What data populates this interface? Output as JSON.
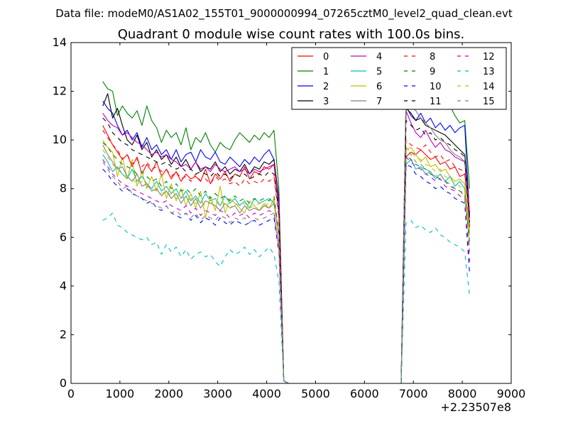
{
  "figure": {
    "suptitle": "Data file: modeM0/AS1A02_155T01_9000000994_07265cztM0_level2_quad_clean.evt"
  },
  "chart_data": {
    "type": "line",
    "title": "Quadrant 0 module wise count rates with 100.0s bins.",
    "xlabel": "",
    "ylabel": "",
    "x_offset_label": "+2.23507e8",
    "xlim": [
      0,
      9000
    ],
    "ylim": [
      0,
      14
    ],
    "xticks": [
      0,
      1000,
      2000,
      3000,
      4000,
      5000,
      6000,
      7000,
      8000,
      9000
    ],
    "yticks": [
      0,
      2,
      4,
      6,
      8,
      10,
      12,
      14
    ],
    "grid": false,
    "legend": {
      "placement": "top-right",
      "columns": 4
    },
    "x": [
      650,
      750,
      850,
      950,
      1050,
      1150,
      1250,
      1350,
      1450,
      1550,
      1650,
      1750,
      1850,
      1950,
      2050,
      2150,
      2250,
      2350,
      2450,
      2550,
      2650,
      2750,
      2850,
      2950,
      3050,
      3150,
      3250,
      3350,
      3450,
      3550,
      3650,
      3750,
      3850,
      3950,
      4050,
      4150,
      4250,
      4350,
      4450,
      4550,
      6650,
      6750,
      6850,
      6950,
      7050,
      7150,
      7250,
      7350,
      7450,
      7550,
      7650,
      7750,
      7850,
      7950,
      8050,
      8150
    ],
    "series": [
      {
        "name": "0",
        "color": "#ff0000",
        "dash": false,
        "values": [
          10.6,
          10.2,
          9.8,
          9.5,
          9.2,
          9.4,
          8.9,
          9.3,
          8.6,
          9.0,
          8.7,
          9.1,
          8.5,
          8.8,
          8.4,
          8.7,
          8.3,
          8.6,
          8.4,
          8.5,
          8.3,
          8.8,
          8.2,
          8.6,
          8.4,
          8.7,
          8.3,
          8.6,
          8.5,
          8.9,
          8.4,
          8.7,
          8.6,
          8.9,
          8.8,
          9.0,
          7.2,
          0.1,
          0,
          0,
          0,
          0,
          9.3,
          9.5,
          9.4,
          9.6,
          9.4,
          9.2,
          9.3,
          9.0,
          9.1,
          8.8,
          8.9,
          8.5,
          8.6,
          6.9
        ]
      },
      {
        "name": "1",
        "color": "#008000",
        "dash": false,
        "values": [
          12.4,
          12.1,
          12.0,
          11.0,
          11.4,
          11.1,
          10.9,
          11.2,
          10.6,
          11.4,
          10.8,
          10.5,
          9.9,
          10.4,
          10.1,
          10.3,
          9.8,
          10.5,
          9.6,
          10.1,
          9.9,
          10.3,
          9.8,
          9.5,
          9.9,
          9.7,
          9.6,
          10.0,
          10.3,
          10.1,
          9.9,
          10.2,
          10.0,
          10.3,
          10.1,
          10.4,
          8.0,
          0.1,
          0,
          0,
          0,
          0,
          11.9,
          12.5,
          12.2,
          11.9,
          12.0,
          11.8,
          11.6,
          11.7,
          11.5,
          11.4,
          11.0,
          10.7,
          10.8,
          8.0
        ]
      },
      {
        "name": "2",
        "color": "#0000ff",
        "dash": false,
        "values": [
          11.6,
          11.3,
          11.1,
          10.6,
          10.2,
          10.4,
          10.0,
          10.3,
          9.7,
          10.1,
          9.6,
          9.8,
          9.4,
          9.6,
          9.2,
          9.6,
          9.1,
          9.4,
          9.5,
          9.1,
          9.6,
          9.3,
          9.2,
          9.5,
          9.1,
          9.0,
          9.3,
          9.1,
          8.9,
          9.2,
          9.0,
          9.3,
          9.1,
          9.4,
          9.6,
          9.2,
          7.3,
          0.1,
          0,
          0,
          0,
          0,
          11.4,
          11.0,
          10.8,
          11.1,
          10.7,
          10.9,
          10.5,
          10.7,
          10.4,
          10.6,
          10.3,
          10.5,
          10.6,
          6.8
        ]
      },
      {
        "name": "3",
        "color": "#000000",
        "dash": false,
        "values": [
          11.4,
          11.9,
          10.9,
          11.3,
          10.6,
          10.0,
          9.8,
          10.2,
          9.6,
          9.9,
          9.3,
          9.6,
          9.2,
          9.4,
          9.0,
          9.3,
          8.9,
          9.2,
          8.8,
          9.1,
          8.7,
          8.9,
          8.8,
          9.1,
          8.7,
          8.9,
          8.6,
          8.8,
          8.7,
          9.0,
          8.6,
          8.9,
          8.8,
          9.1,
          9.0,
          9.2,
          7.6,
          0.1,
          0,
          0,
          0,
          0,
          11.3,
          11.1,
          10.8,
          10.9,
          10.6,
          10.5,
          10.4,
          10.3,
          10.2,
          10.0,
          9.8,
          9.6,
          9.4,
          7.0
        ]
      },
      {
        "name": "4",
        "color": "#bf00bf",
        "dash": false,
        "values": [
          11.1,
          10.8,
          10.6,
          10.5,
          10.2,
          10.3,
          10.1,
          9.9,
          9.8,
          9.6,
          9.4,
          9.5,
          9.3,
          9.4,
          9.2,
          9.1,
          8.9,
          9.0,
          8.8,
          9.1,
          8.8,
          8.9,
          8.7,
          9.0,
          8.8,
          8.7,
          8.8,
          8.9,
          8.7,
          8.8,
          8.6,
          8.8,
          8.7,
          8.8,
          8.9,
          9.0,
          7.5,
          0.1,
          0,
          0,
          0,
          0,
          11.2,
          10.7,
          10.3,
          10.1,
          10.4,
          10.0,
          9.7,
          9.9,
          9.6,
          9.5,
          9.3,
          9.2,
          9.1,
          7.0
        ]
      },
      {
        "name": "5",
        "color": "#00bfbf",
        "dash": false,
        "values": [
          9.4,
          9.1,
          8.7,
          8.9,
          8.6,
          8.4,
          8.8,
          8.3,
          8.5,
          8.2,
          8.0,
          8.3,
          7.9,
          8.1,
          7.8,
          8.0,
          7.6,
          7.9,
          7.5,
          7.7,
          7.4,
          7.8,
          7.5,
          7.6,
          7.3,
          7.7,
          7.4,
          7.6,
          7.3,
          7.5,
          7.2,
          7.6,
          7.4,
          7.5,
          7.6,
          7.4,
          6.1,
          0.1,
          0,
          0,
          0,
          0,
          9.0,
          9.2,
          8.8,
          8.9,
          8.6,
          8.7,
          8.4,
          8.6,
          8.3,
          8.5,
          8.1,
          8.3,
          8.0,
          6.2
        ]
      },
      {
        "name": "6",
        "color": "#bfbf00",
        "dash": false,
        "values": [
          10.0,
          9.7,
          9.5,
          8.5,
          9.3,
          8.4,
          9.2,
          8.1,
          8.7,
          8.0,
          8.5,
          7.9,
          8.6,
          7.6,
          8.2,
          7.5,
          8.0,
          7.3,
          7.8,
          7.2,
          7.9,
          6.8,
          7.7,
          7.1,
          8.1,
          7.0,
          7.6,
          7.4,
          7.2,
          7.0,
          7.5,
          7.3,
          7.1,
          7.4,
          7.2,
          7.6,
          6.1,
          0.1,
          0,
          0,
          0,
          0,
          9.6,
          9.7,
          9.4,
          9.1,
          9.3,
          8.9,
          9.0,
          8.7,
          8.8,
          8.5,
          8.3,
          8.4,
          8.2,
          6.1
        ]
      },
      {
        "name": "7",
        "color": "#808080",
        "dash": false,
        "values": [
          9.8,
          9.4,
          9.1,
          8.8,
          8.9,
          8.5,
          8.3,
          8.6,
          8.1,
          8.2,
          7.9,
          8.0,
          7.7,
          7.9,
          7.6,
          7.8,
          7.4,
          7.7,
          7.3,
          7.6,
          7.2,
          7.5,
          7.4,
          7.3,
          7.1,
          7.4,
          7.2,
          7.3,
          7.0,
          7.3,
          7.1,
          7.2,
          7.1,
          7.3,
          7.2,
          7.4,
          6.0,
          0.1,
          0,
          0,
          0,
          0,
          11.8,
          11.4,
          11.2,
          10.9,
          10.7,
          10.5,
          10.2,
          10.0,
          9.9,
          9.6,
          9.4,
          9.3,
          9.1,
          6.5
        ]
      },
      {
        "name": "8",
        "color": "#ff0000",
        "dash": true,
        "values": [
          10.4,
          10.1,
          9.8,
          9.6,
          9.2,
          9.4,
          9.0,
          9.2,
          8.9,
          9.1,
          8.8,
          8.9,
          8.7,
          8.8,
          8.5,
          8.7,
          8.4,
          8.5,
          8.3,
          8.6,
          8.3,
          8.4,
          8.2,
          8.5,
          8.3,
          8.4,
          8.2,
          8.3,
          8.1,
          8.4,
          8.2,
          8.3,
          8.2,
          8.4,
          8.3,
          8.5,
          6.8,
          0.1,
          0,
          0,
          0,
          0,
          10.0,
          9.8,
          9.7,
          9.6,
          9.8,
          9.5,
          9.3,
          9.4,
          9.1,
          9.2,
          8.9,
          8.8,
          8.7,
          6.4
        ]
      },
      {
        "name": "9",
        "color": "#008000",
        "dash": true,
        "values": [
          9.9,
          9.7,
          9.4,
          9.2,
          9.0,
          8.9,
          8.8,
          8.6,
          8.7,
          8.5,
          8.3,
          8.4,
          8.1,
          8.3,
          8.0,
          8.2,
          7.9,
          8.0,
          7.8,
          8.0,
          7.7,
          7.9,
          7.6,
          7.8,
          7.6,
          7.7,
          7.5,
          7.7,
          7.5,
          7.6,
          7.4,
          7.6,
          7.5,
          7.6,
          7.5,
          7.7,
          6.2,
          0.1,
          0,
          0,
          0,
          0,
          9.4,
          9.2,
          9.0,
          8.9,
          8.8,
          8.6,
          8.5,
          8.4,
          8.3,
          8.1,
          8.0,
          7.9,
          7.8,
          5.8
        ]
      },
      {
        "name": "10",
        "color": "#0000ff",
        "dash": true,
        "values": [
          8.8,
          8.6,
          8.3,
          8.1,
          7.9,
          8.0,
          7.8,
          7.7,
          7.6,
          7.4,
          7.5,
          7.2,
          7.1,
          7.3,
          7.0,
          6.9,
          6.8,
          7.0,
          6.7,
          6.9,
          6.6,
          6.8,
          6.7,
          6.5,
          6.8,
          6.6,
          6.5,
          6.7,
          6.6,
          6.5,
          6.6,
          6.7,
          6.5,
          6.6,
          6.7,
          6.8,
          5.4,
          0.1,
          0,
          0,
          0,
          0,
          9.0,
          8.9,
          8.6,
          8.5,
          8.3,
          8.2,
          8.0,
          8.1,
          7.9,
          7.8,
          7.6,
          7.5,
          7.4,
          4.5
        ]
      },
      {
        "name": "11",
        "color": "#000000",
        "dash": true,
        "values": [
          10.9,
          10.7,
          10.3,
          10.1,
          9.9,
          9.8,
          9.6,
          9.5,
          9.4,
          9.3,
          9.2,
          9.1,
          9.0,
          9.1,
          8.9,
          8.8,
          8.9,
          8.7,
          8.8,
          8.6,
          8.7,
          8.6,
          8.5,
          8.7,
          8.5,
          8.6,
          8.4,
          8.6,
          8.5,
          8.6,
          8.4,
          8.5,
          8.6,
          8.5,
          8.7,
          8.6,
          7.0,
          0.1,
          0,
          0,
          0,
          0,
          10.8,
          10.6,
          10.4,
          10.5,
          10.2,
          10.3,
          10.0,
          10.1,
          9.9,
          9.8,
          9.6,
          9.5,
          9.3,
          6.6
        ]
      },
      {
        "name": "12",
        "color": "#bf00bf",
        "dash": true,
        "values": [
          9.2,
          8.9,
          8.6,
          8.4,
          8.2,
          8.1,
          8.0,
          7.9,
          7.8,
          7.7,
          7.6,
          7.5,
          7.4,
          7.5,
          7.3,
          7.2,
          7.1,
          7.3,
          7.0,
          7.2,
          6.9,
          7.1,
          7.0,
          6.9,
          7.1,
          7.0,
          6.8,
          7.0,
          6.9,
          7.0,
          6.8,
          7.0,
          6.9,
          7.0,
          7.1,
          7.0,
          5.6,
          0.1,
          0,
          0,
          0,
          0,
          9.3,
          9.1,
          8.9,
          8.8,
          8.6,
          8.5,
          8.3,
          8.4,
          8.1,
          8.0,
          7.9,
          7.7,
          7.6,
          5.0
        ]
      },
      {
        "name": "13",
        "color": "#00bfbf",
        "dash": true,
        "values": [
          6.7,
          6.8,
          7.0,
          6.5,
          6.4,
          6.2,
          6.1,
          6.0,
          5.9,
          6.0,
          5.7,
          5.8,
          5.3,
          5.7,
          5.4,
          5.6,
          5.2,
          5.5,
          5.1,
          5.3,
          5.4,
          5.2,
          5.3,
          5.0,
          4.8,
          5.2,
          5.5,
          5.3,
          5.4,
          5.6,
          5.3,
          5.5,
          5.2,
          5.4,
          5.6,
          5.3,
          4.2,
          0.1,
          0,
          0,
          0,
          0,
          6.6,
          6.7,
          6.4,
          6.5,
          6.3,
          6.2,
          6.4,
          6.1,
          6.0,
          5.8,
          5.7,
          5.6,
          5.4,
          3.6
        ]
      },
      {
        "name": "14",
        "color": "#bfbf00",
        "dash": true,
        "values": [
          9.6,
          9.3,
          9.0,
          8.8,
          8.6,
          8.5,
          8.4,
          8.2,
          8.3,
          8.1,
          8.0,
          7.9,
          7.8,
          7.9,
          7.7,
          7.6,
          7.7,
          7.5,
          7.6,
          7.4,
          7.5,
          7.3,
          7.4,
          7.5,
          7.3,
          7.4,
          7.2,
          7.4,
          7.3,
          7.4,
          7.2,
          7.3,
          7.4,
          7.3,
          7.4,
          7.5,
          6.0,
          0.1,
          0,
          0,
          0,
          0,
          9.7,
          9.5,
          9.3,
          9.2,
          9.0,
          8.9,
          8.7,
          8.8,
          8.5,
          8.4,
          8.2,
          8.1,
          7.9,
          5.6
        ]
      },
      {
        "name": "15",
        "color": "#808080",
        "dash": true,
        "values": [
          9.1,
          8.8,
          8.5,
          8.3,
          8.0,
          8.1,
          7.8,
          7.7,
          7.6,
          7.5,
          7.4,
          7.3,
          7.2,
          7.3,
          7.0,
          7.1,
          6.9,
          7.0,
          6.8,
          7.0,
          6.7,
          6.9,
          6.8,
          6.7,
          6.9,
          6.8,
          6.6,
          6.8,
          6.7,
          6.8,
          6.6,
          6.8,
          6.7,
          6.8,
          6.9,
          7.0,
          5.6,
          0.1,
          0,
          0,
          0,
          0,
          9.6,
          9.4,
          9.1,
          9.0,
          8.8,
          8.7,
          8.5,
          8.6,
          8.3,
          8.2,
          8.0,
          7.9,
          7.7,
          5.4
        ]
      }
    ]
  }
}
